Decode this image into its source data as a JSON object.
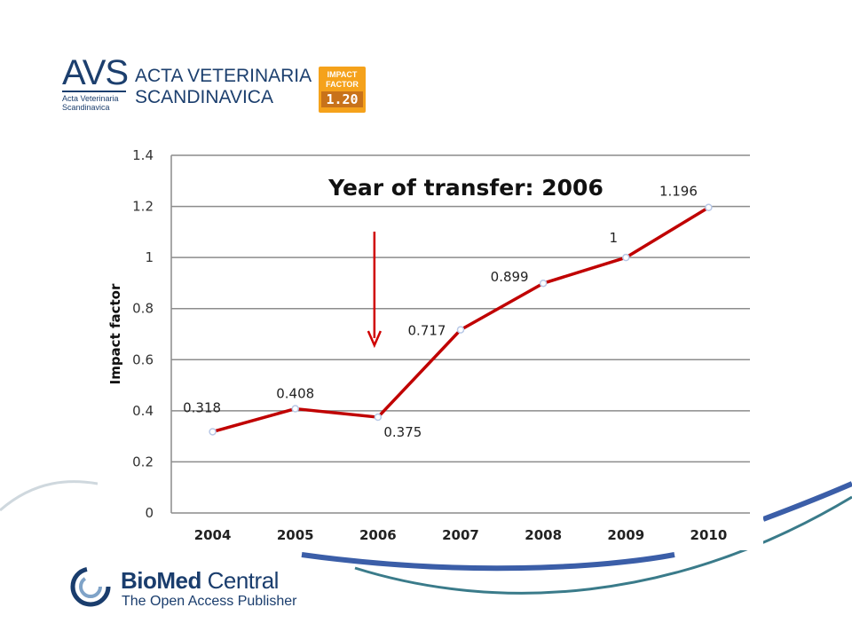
{
  "header": {
    "avs_short": "AVS",
    "avs_small": "Acta Veterinaria Scandinavica",
    "journal_line1": "ACTA VETERINARIA",
    "journal_line2": "SCANDINAVICA",
    "badge_line1": "IMPACT",
    "badge_line2": "FACTOR",
    "badge_value": "1.20"
  },
  "footer": {
    "publisher_bold": "BioMed",
    "publisher_rest": " Central",
    "tagline": "The Open Access Publisher"
  },
  "colors": {
    "brand_blue": "#1c3f6e",
    "badge_orange": "#f5a21b",
    "line_red": "#c00000"
  },
  "chart_data": {
    "type": "line",
    "title": "Year of transfer: 2006",
    "xlabel": "",
    "ylabel": "Impact factor",
    "categories": [
      "2004",
      "2005",
      "2006",
      "2007",
      "2008",
      "2009",
      "2010"
    ],
    "series": [
      {
        "values": [
          0.318,
          0.408,
          0.375,
          0.717,
          0.899,
          1,
          1.196
        ]
      }
    ],
    "data_labels": [
      "0.318",
      "0.408",
      "0.375",
      "0.717",
      "0.899",
      "1",
      "1.196"
    ],
    "ylim": [
      0,
      1.4
    ],
    "yticks": [
      "0",
      "0.2",
      "0.4",
      "0.6",
      "0.8",
      "1",
      "1.2",
      "1.4"
    ],
    "grid": true,
    "annotation": {
      "type": "arrow-down",
      "at_category": "2006"
    }
  }
}
